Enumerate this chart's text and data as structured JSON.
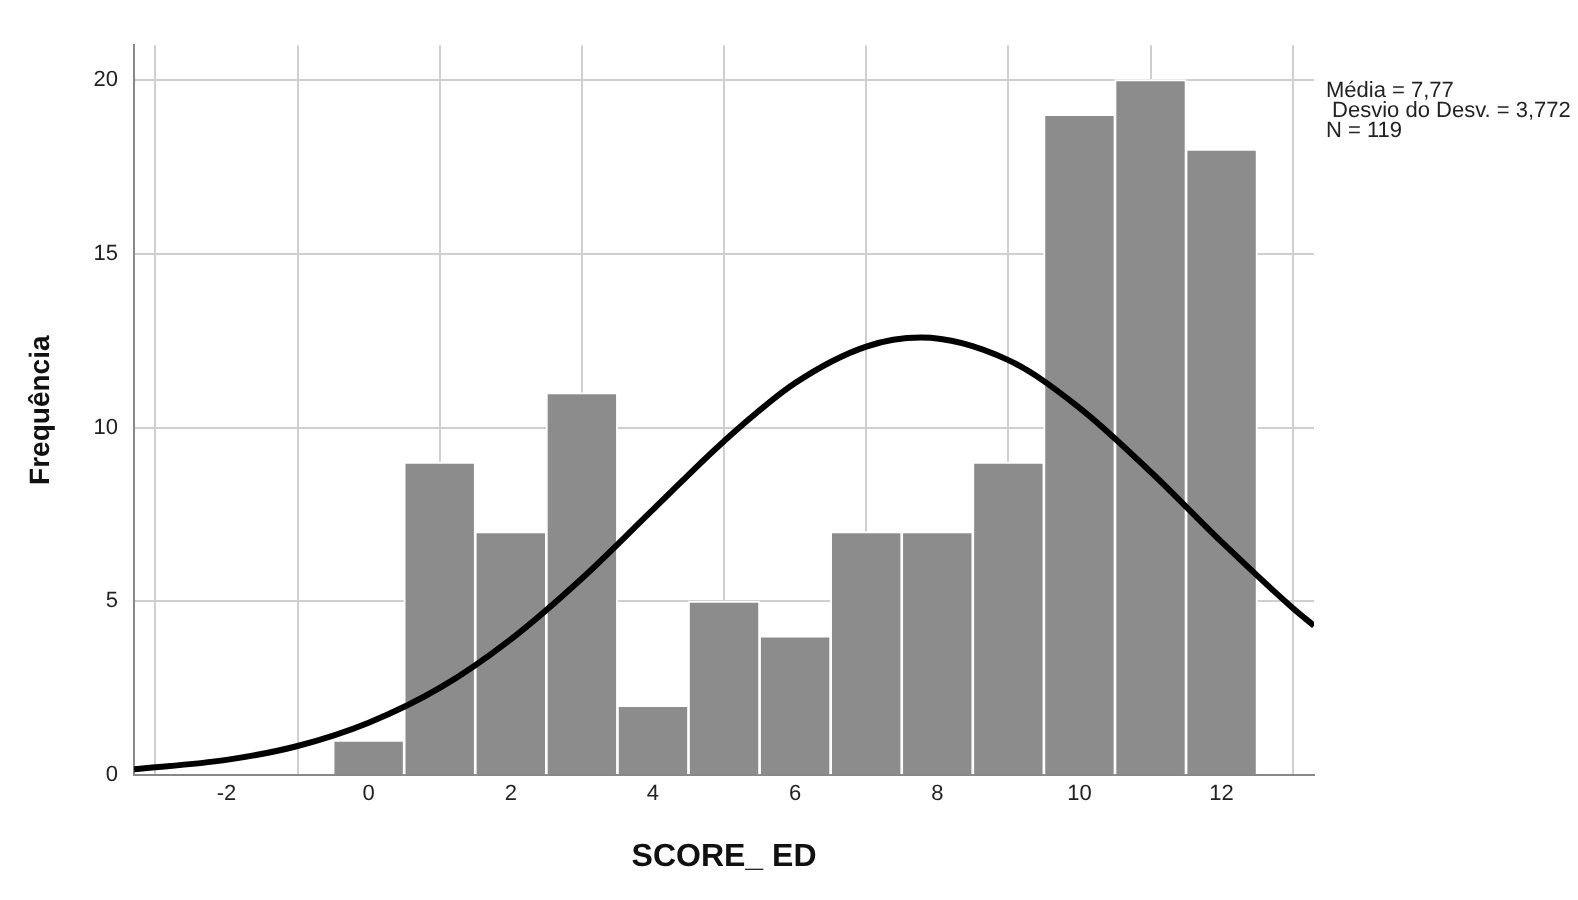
{
  "chart_data": {
    "type": "histogram",
    "xlabel": "SCORE_ ED",
    "ylabel": "Frequência",
    "bins": [
      -0.5,
      0.5,
      1.5,
      2.5,
      3.5,
      4.5,
      5.5,
      6.5,
      7.5,
      8.5,
      9.5,
      10.5,
      11.5,
      12.5
    ],
    "values": [
      1,
      9,
      7,
      11,
      2,
      5,
      4,
      7,
      7,
      9,
      19,
      20,
      18
    ],
    "color": "#8c8c8c",
    "series": [
      {
        "type": "line",
        "color": "#000000",
        "x": [
          -3.3,
          -2,
          -1,
          0,
          1,
          2,
          3,
          4,
          5,
          6,
          7,
          7.77,
          9,
          10,
          11,
          12,
          13,
          13.3
        ],
        "values": [
          0.17,
          0.44,
          0.84,
          1.51,
          2.51,
          3.91,
          5.66,
          7.64,
          9.61,
          11.28,
          12.33,
          12.59,
          11.94,
          10.57,
          8.73,
          6.71,
          4.81,
          4.3
        ]
      }
    ],
    "xlim": [
      -3.3,
      13.3
    ],
    "xticks": [
      -2,
      0,
      2,
      4,
      6,
      8,
      10,
      12
    ],
    "ylim": [
      0,
      21
    ],
    "yticks": [
      0,
      5,
      10,
      15,
      20
    ],
    "grid": true,
    "annotations": [
      "Média = 7,77",
      " Desvio do Desv. = 3,772",
      "N = 119"
    ]
  }
}
